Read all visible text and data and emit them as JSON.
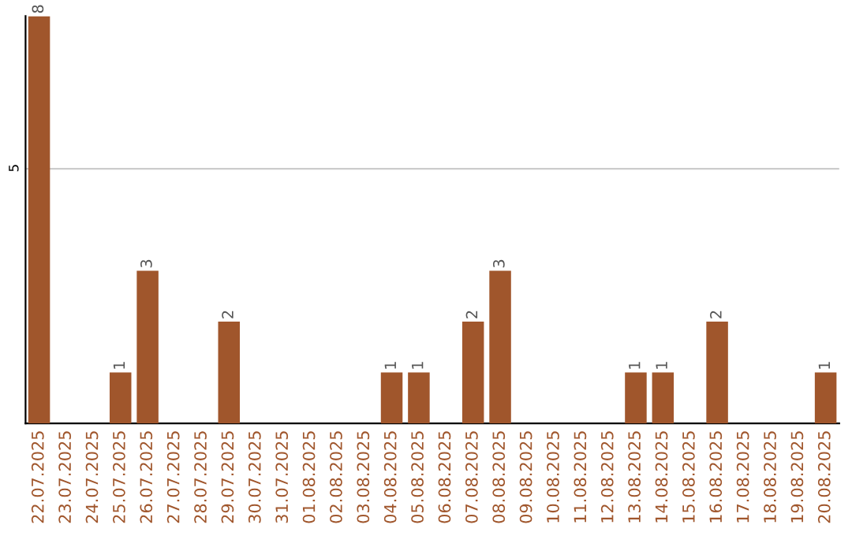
{
  "chart_data": {
    "type": "bar",
    "categories": [
      "22.07.2025",
      "23.07.2025",
      "24.07.2025",
      "25.07.2025",
      "26.07.2025",
      "27.07.2025",
      "28.07.2025",
      "29.07.2025",
      "30.07.2025",
      "31.07.2025",
      "01.08.2025",
      "02.08.2025",
      "03.08.2025",
      "04.08.2025",
      "05.08.2025",
      "06.08.2025",
      "07.08.2025",
      "08.08.2025",
      "09.08.2025",
      "10.08.2025",
      "11.08.2025",
      "12.08.2025",
      "13.08.2025",
      "14.08.2025",
      "15.08.2025",
      "16.08.2025",
      "17.08.2025",
      "18.08.2025",
      "19.08.2025",
      "20.08.2025"
    ],
    "values": [
      8,
      0,
      0,
      1,
      3,
      0,
      0,
      2,
      0,
      0,
      0,
      0,
      0,
      1,
      1,
      0,
      2,
      3,
      0,
      0,
      0,
      0,
      1,
      1,
      0,
      2,
      0,
      0,
      0,
      1
    ],
    "value_labels": [
      "8",
      null,
      null,
      "1",
      "3",
      null,
      null,
      "2",
      null,
      null,
      null,
      null,
      null,
      "1",
      "1",
      null,
      "2",
      "3",
      null,
      null,
      null,
      null,
      "1",
      "1",
      null,
      "2",
      null,
      null,
      null,
      "1"
    ],
    "color": "#a0562c",
    "ylim": [
      0,
      8
    ],
    "yticks": [
      5
    ],
    "grid": "y",
    "legend": false
  }
}
